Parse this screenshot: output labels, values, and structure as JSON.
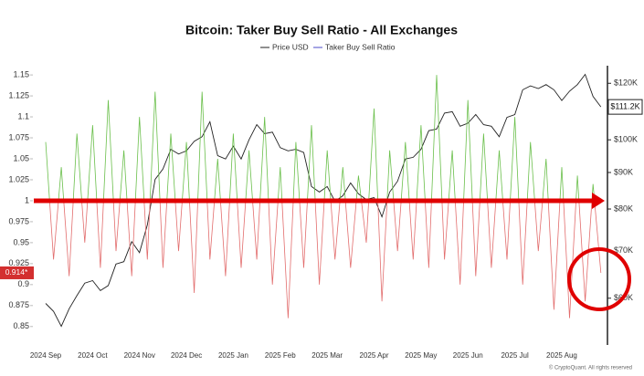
{
  "chart_data": {
    "type": "line",
    "title": "Bitcoin: Taker Buy Sell Ratio - All Exchanges",
    "categories": [
      "2024 Sep",
      null,
      null,
      null,
      null,
      null,
      "2024 Oct",
      null,
      null,
      null,
      null,
      null,
      "2024 Nov",
      null,
      null,
      null,
      null,
      null,
      "2024 Dec",
      null,
      null,
      null,
      null,
      null,
      "2025 Jan",
      null,
      null,
      null,
      null,
      null,
      "2025 Feb",
      null,
      null,
      null,
      null,
      null,
      "2025 Mar",
      null,
      null,
      null,
      null,
      null,
      "2025 Apr",
      null,
      null,
      null,
      null,
      null,
      "2025 May",
      null,
      null,
      null,
      null,
      null,
      "2025 Jun",
      null,
      null,
      null,
      null,
      null,
      "2025 Jul",
      null,
      null,
      null,
      null,
      null,
      "2025 Aug",
      null,
      null,
      null,
      null,
      null
    ],
    "series": [
      {
        "name": "Price USD",
        "color": "#222222",
        "axis": "y2",
        "scale": "log",
        "values": [
          59000,
          57500,
          54800,
          58000,
          60500,
          63000,
          63500,
          61500,
          62500,
          67000,
          67500,
          72000,
          69500,
          76000,
          88000,
          91000,
          97000,
          95500,
          96500,
          99500,
          101000,
          106000,
          95000,
          94000,
          98000,
          94000,
          100000,
          105000,
          102000,
          102500,
          97500,
          96500,
          97000,
          96000,
          86000,
          84500,
          86000,
          82000,
          83500,
          87000,
          84000,
          82500,
          83000,
          78000,
          84500,
          87500,
          94000,
          94500,
          97000,
          103000,
          103500,
          109000,
          109500,
          104500,
          105500,
          108500,
          105000,
          104500,
          101000,
          107500,
          108500,
          117500,
          119000,
          118000,
          119500,
          117500,
          113500,
          117000,
          119500,
          123500,
          115000,
          111200
        ],
        "last_label": {
          "value": 111200,
          "label": "$111.2K"
        }
      },
      {
        "name": "Taker Buy Sell Ratio",
        "color": "#4b4bc8",
        "color_above": "#6abf4b",
        "color_below": "#e26d6d",
        "threshold": 1,
        "values": [
          1.07,
          0.93,
          1.04,
          0.91,
          1.08,
          0.95,
          1.09,
          0.92,
          1.12,
          0.94,
          1.06,
          0.91,
          1.1,
          0.93,
          1.13,
          0.92,
          1.08,
          0.94,
          1.07,
          0.89,
          1.13,
          0.93,
          1.05,
          0.91,
          1.08,
          0.92,
          1.06,
          0.93,
          1.1,
          0.9,
          1.04,
          0.86,
          1.07,
          0.92,
          1.09,
          0.9,
          1.06,
          0.93,
          1.04,
          0.92,
          1.03,
          0.95,
          1.11,
          0.88,
          1.06,
          0.94,
          1.07,
          0.93,
          1.09,
          0.92,
          1.15,
          0.93,
          1.06,
          0.9,
          1.12,
          0.91,
          1.08,
          0.92,
          1.06,
          0.93,
          1.1,
          0.9,
          1.07,
          0.94,
          1.05,
          0.87,
          1.04,
          0.86,
          1.03,
          0.88,
          1.02,
          0.914
        ],
        "last_label": {
          "value": 0.914,
          "label": "0.914*"
        }
      }
    ],
    "ylim": [
      0.828,
      1.161
    ],
    "yticks": [
      0.85,
      0.875,
      0.9,
      0.925,
      0.95,
      0.975,
      1,
      1.025,
      1.05,
      1.075,
      1.1,
      1.125,
      1.15
    ],
    "y2lim": [
      51600,
      127000
    ],
    "y2scale": "log",
    "y2ticks": [
      {
        "value": 60000,
        "label": "$60K"
      },
      {
        "value": 70000,
        "label": "$70K"
      },
      {
        "value": 80000,
        "label": "$80K"
      },
      {
        "value": 90000,
        "label": "$90K"
      },
      {
        "value": 100000,
        "label": "$100K"
      },
      {
        "value": 120000,
        "label": "$120K"
      }
    ],
    "legend": "top",
    "grid": false,
    "copyright": "© CryptoQuant. All rights reserved"
  }
}
